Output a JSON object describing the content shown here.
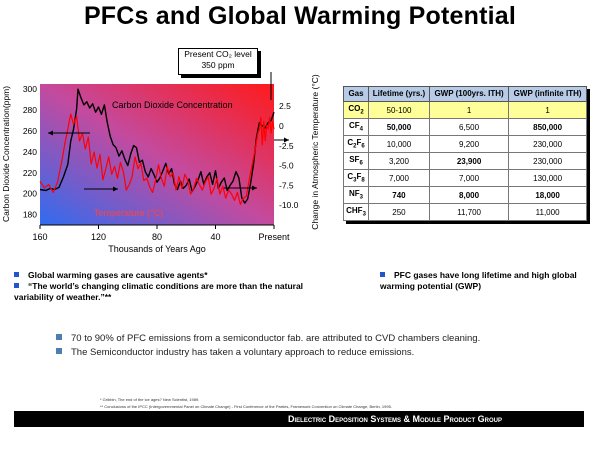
{
  "slide": {
    "title": "PFCs and Global Warming Potential",
    "callout": {
      "line1": "Present CO₂ level",
      "line2": "350 ppm"
    },
    "footer": "Dielectric Deposition Systems & Module Product Group"
  },
  "chart_data": {
    "type": "line",
    "xlabel": "Thousands of Years Ago",
    "x_ticks": [
      "160",
      "120",
      "80",
      "40",
      "Present"
    ],
    "xlim": [
      160,
      0
    ],
    "y_left": {
      "label": "Carbon Dioxide Concentration(ppm)",
      "ticks": [
        "300",
        "280",
        "260",
        "240",
        "220",
        "200",
        "180"
      ],
      "ylim": [
        170,
        305
      ]
    },
    "y_right": {
      "label": "Change in Atmospheric Temperature (°C)",
      "ticks": [
        "2.5",
        "0",
        "-2.5",
        "-5.0",
        "-7.5",
        "-10.0"
      ],
      "ylim": [
        -12.5,
        5.3
      ]
    },
    "series": [
      {
        "name": "Carbon Dioxide Concentration",
        "color": "#000000",
        "axis": "left",
        "x": [
          160,
          156,
          153,
          150,
          147,
          144,
          141,
          139,
          137,
          135,
          134,
          132,
          130,
          128,
          126,
          124,
          122,
          120,
          118,
          116,
          114,
          112,
          110,
          108,
          106,
          104,
          102,
          100,
          98,
          96,
          94,
          92,
          90,
          88,
          86,
          84,
          82,
          80,
          78,
          76,
          74,
          72,
          70,
          68,
          66,
          64,
          62,
          60,
          58,
          56,
          54,
          52,
          50,
          48,
          46,
          44,
          42,
          40,
          38,
          36,
          34,
          32,
          30,
          28,
          26,
          24,
          22,
          20,
          18,
          16,
          14,
          12,
          10,
          8,
          6,
          4,
          2,
          0
        ],
        "values": [
          204,
          203,
          205,
          204,
          206,
          216,
          228,
          250,
          262,
          281,
          300,
          292,
          285,
          288,
          282,
          286,
          278,
          283,
          276,
          285,
          268,
          255,
          247,
          244,
          236,
          241,
          233,
          227,
          238,
          246,
          244,
          230,
          232,
          221,
          216,
          224,
          218,
          211,
          215,
          222,
          229,
          219,
          224,
          209,
          204,
          212,
          205,
          208,
          214,
          202,
          207,
          213,
          221,
          209,
          216,
          220,
          209,
          222,
          205,
          211,
          215,
          203,
          208,
          212,
          221,
          215,
          196,
          191,
          195,
          210,
          228,
          254,
          268,
          265,
          263,
          268,
          270,
          278
        ]
      },
      {
        "name": "Temperature (°C)",
        "color": "#ff0000",
        "axis": "right",
        "x": [
          160,
          157,
          154,
          151,
          148,
          145,
          143,
          141,
          139,
          137,
          135,
          133,
          131,
          129,
          127,
          125,
          123,
          121,
          119,
          117,
          115,
          113,
          111,
          109,
          107,
          105,
          103,
          101,
          99,
          97,
          95,
          93,
          91,
          89,
          87,
          85,
          83,
          81,
          79,
          77,
          75,
          73,
          71,
          69,
          67,
          65,
          63,
          61,
          59,
          57,
          55,
          53,
          51,
          49,
          47,
          45,
          43,
          41,
          39,
          37,
          35,
          33,
          31,
          29,
          27,
          25,
          23,
          21,
          19,
          17,
          15,
          13,
          11,
          10,
          9,
          8,
          7,
          6,
          5,
          4,
          3,
          2,
          1,
          0
        ],
        "values": [
          -7,
          -7.8,
          -7.4,
          -8.4,
          -7.1,
          -4.4,
          -2.2,
          -0.4,
          1.5,
          0.2,
          1.2,
          -1.9,
          -0.9,
          -2.9,
          -1.4,
          -4.8,
          -3.3,
          -5.3,
          -3.6,
          -6.8,
          -5.4,
          -3.9,
          -6.1,
          -5.1,
          -6.6,
          -4.6,
          -5.8,
          -8.1,
          -7.4,
          -6.4,
          -3.9,
          -5.4,
          -4.7,
          -6.9,
          -6.6,
          -7.7,
          -8.4,
          -6.9,
          -4.9,
          -6.6,
          -7.6,
          -5.1,
          -6.4,
          -5.9,
          -8.1,
          -6.4,
          -7.9,
          -6.1,
          -6.9,
          -8.6,
          -7.9,
          -6.6,
          -7.4,
          -8.1,
          -7.1,
          -6.4,
          -8.6,
          -7.9,
          -6.6,
          -8.6,
          -7.6,
          -9.1,
          -8.1,
          -8.6,
          -9.4,
          -8.4,
          -9.9,
          -9.1,
          -8.9,
          -6.9,
          -4.9,
          -3.1,
          -0.9,
          -0.4,
          1.1,
          -2.4,
          0.6,
          -1.9,
          0.1,
          -0.4,
          1.1,
          -0.9,
          0.6,
          -0.4
        ]
      }
    ],
    "annotations": [
      "Carbon Dioxide Concentration",
      "Temperature (°C)"
    ]
  },
  "table": {
    "headers": [
      "Gas",
      "Lifetime (yrs.)",
      "GWP (100yrs. ITH)",
      "GWP (infinite ITH)"
    ],
    "rows": [
      {
        "gas": "CO",
        "sub": "2",
        "cells": [
          "50-100",
          "1",
          "1"
        ],
        "bold": [
          false,
          false,
          false
        ]
      },
      {
        "gas": "CF",
        "sub": "4",
        "cells": [
          "50,000",
          "6,500",
          "850,000"
        ],
        "bold": [
          true,
          false,
          true
        ]
      },
      {
        "gas": "C",
        "sub": "2",
        "suffix": "F",
        "sub2": "6",
        "cells": [
          "10,000",
          "9,200",
          "230,000"
        ],
        "bold": [
          false,
          false,
          false
        ]
      },
      {
        "gas": "SF",
        "sub": "6",
        "cells": [
          "3,200",
          "23,900",
          "230,000"
        ],
        "bold": [
          false,
          true,
          false
        ]
      },
      {
        "gas": "C",
        "sub": "3",
        "suffix": "F",
        "sub2": "8",
        "cells": [
          "7,000",
          "7,000",
          "130,000"
        ],
        "bold": [
          false,
          false,
          false
        ]
      },
      {
        "gas": "NF",
        "sub": "3",
        "cells": [
          "740",
          "8,000",
          "18,000"
        ],
        "bold": [
          true,
          true,
          true
        ]
      },
      {
        "gas": "CHF",
        "sub": "3",
        "cells": [
          "250",
          "11,700",
          "11,000"
        ],
        "bold": [
          false,
          false,
          false
        ]
      }
    ]
  },
  "bullets": {
    "b1": "Global warming gases are causative agents*",
    "b2": "“The world’s changing climatic conditions are more than the natural variability of weather.”**",
    "b3": "PFC gases have long lifetime and high global warming potential (GWP)",
    "b4": "70 to 90% of PFC emissions from a semiconductor fab. are attributed to CVD chambers cleaning.",
    "b5": "The Semiconductor industry has taken a voluntary approach to reduce emissions."
  },
  "references": {
    "r1": "* Gribbin, The end of the ice ages? New Scientist, 1989.",
    "r2": "** Conclusions of the IPCC (Intergovernmental Panel on Climate Change) - First Conference of the Parties, Framework Convention on Climate Change, Berlin, 1995."
  }
}
